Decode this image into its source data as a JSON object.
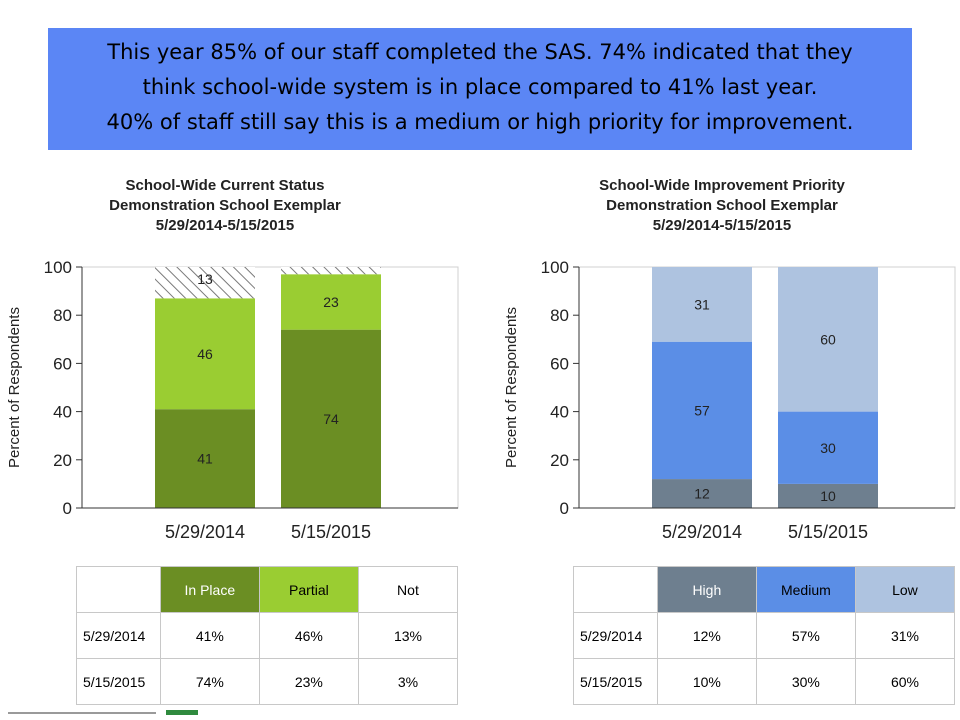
{
  "banner": {
    "line1": "This year 85% of our staff completed the SAS.  74% indicated that they",
    "line2": "think school-wide system is in place compared to 41% last year.",
    "line3": "40% of staff still say this is a medium or high priority for improvement.",
    "color": "#5b86f5"
  },
  "chart_data": [
    {
      "type": "bar",
      "stacked": true,
      "title": [
        "School-Wide Current Status",
        "Demonstration School Exemplar",
        "5/29/2014-5/15/2015"
      ],
      "xlabel": "",
      "ylabel": "Percent of Respondents",
      "ylim": [
        0,
        100
      ],
      "yticks": [
        0,
        20,
        40,
        60,
        80,
        100
      ],
      "grid": true,
      "categories": [
        "5/29/2014",
        "5/15/2015"
      ],
      "series": [
        {
          "name": "In Place",
          "values": [
            41,
            74
          ],
          "color": "#6b8e23",
          "labels": [
            "41",
            "74"
          ]
        },
        {
          "name": "Partial",
          "values": [
            46,
            23
          ],
          "color": "#9acd32",
          "labels": [
            "46",
            "23"
          ]
        },
        {
          "name": "Not",
          "values": [
            13,
            3
          ],
          "color": "hatched",
          "labels": [
            "13",
            ""
          ]
        }
      ]
    },
    {
      "type": "bar",
      "stacked": true,
      "title": [
        "School-Wide Improvement Priority",
        "Demonstration School Exemplar",
        "5/29/2014-5/15/2015"
      ],
      "xlabel": "",
      "ylabel": "Percent of Respondents",
      "ylim": [
        0,
        100
      ],
      "yticks": [
        0,
        20,
        40,
        60,
        80,
        100
      ],
      "grid": true,
      "categories": [
        "5/29/2014",
        "5/15/2015"
      ],
      "series": [
        {
          "name": "High",
          "values": [
            12,
            10
          ],
          "color": "#6e7f8f",
          "labels": [
            "12",
            "10"
          ]
        },
        {
          "name": "Medium",
          "values": [
            57,
            30
          ],
          "color": "#5b8ee6",
          "labels": [
            "57",
            "30"
          ]
        },
        {
          "name": "Low",
          "values": [
            31,
            60
          ],
          "color": "#aec3e0",
          "labels": [
            "31",
            "60"
          ]
        }
      ]
    }
  ],
  "tables": {
    "left": {
      "headers": [
        "",
        "In Place",
        "Partial",
        "Not"
      ],
      "header_colors": [
        "#ffffff",
        "#6b8e23",
        "#9acd32",
        "#ffffff"
      ],
      "header_text_colors": [
        "#000000",
        "#ffffff",
        "#000000",
        "#000000"
      ],
      "rows": [
        [
          "5/29/2014",
          "41%",
          "46%",
          "13%"
        ],
        [
          "5/15/2015",
          "74%",
          "23%",
          "3%"
        ]
      ]
    },
    "right": {
      "headers": [
        "",
        "High",
        "Medium",
        "Low"
      ],
      "header_colors": [
        "#ffffff",
        "#6e7f8f",
        "#5b8ee6",
        "#aec3e0"
      ],
      "header_text_colors": [
        "#000000",
        "#ffffff",
        "#000000",
        "#000000"
      ],
      "rows": [
        [
          "5/29/2014",
          "12%",
          "57%",
          "31%"
        ],
        [
          "5/15/2015",
          "10%",
          "30%",
          "60%"
        ]
      ]
    }
  }
}
